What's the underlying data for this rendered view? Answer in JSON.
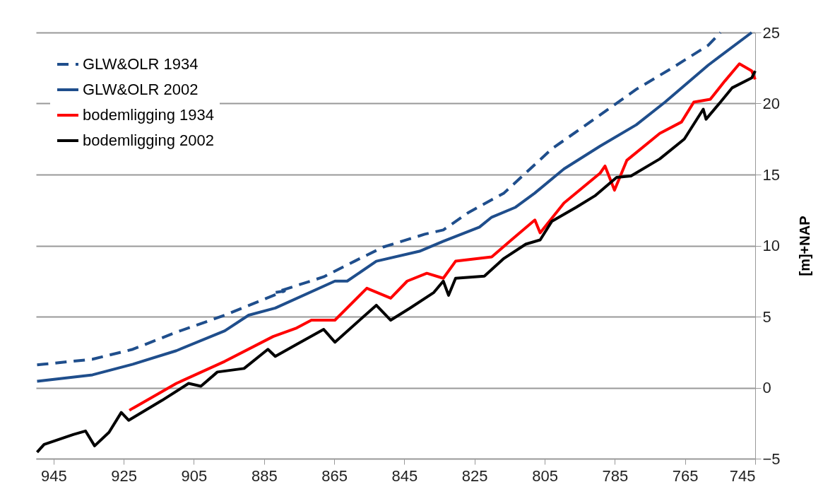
{
  "chart_data": {
    "type": "line",
    "ylabel": "[m]+NAP",
    "xlim": [
      950,
      745
    ],
    "xticks": [
      945,
      925,
      905,
      885,
      865,
      845,
      825,
      805,
      785,
      765,
      745
    ],
    "ylim": [
      -5,
      25
    ],
    "yticks": [
      -5,
      0,
      5,
      10,
      15,
      20,
      25
    ],
    "grid": "y",
    "legend": "top left",
    "marker": "none",
    "series": [
      {
        "name": "GLW&OLR 1934",
        "color": "#1f4e8c",
        "line_style": "dashed",
        "x": [
          949.7,
          947.7,
          933.9,
          922.4,
          910.0,
          896.2,
          879.2,
          881.8,
          868.0,
          859.2,
          851.0,
          839.2,
          833.9,
          826.9,
          816.6,
          803.0,
          789.2,
          778.9,
          768.7,
          758.4,
          754.9
        ],
        "values": [
          1.6,
          1.65,
          2.0,
          2.7,
          3.9,
          5.1,
          6.8,
          6.7,
          7.8,
          8.9,
          9.9,
          10.8,
          11.1,
          12.3,
          13.7,
          16.8,
          19.2,
          21.0,
          22.5,
          24.1,
          25.0
        ]
      },
      {
        "name": "GLW&OLR 2002",
        "color": "#1f4e8c",
        "line_style": "solid",
        "x": [
          949.7,
          933.9,
          922.4,
          910.0,
          896.2,
          889.4,
          881.8,
          864.8,
          861.3,
          853.0,
          840.7,
          833.9,
          823.6,
          820.1,
          813.3,
          807.8,
          799.5,
          789.2,
          778.9,
          770.7,
          758.4,
          746.0
        ],
        "values": [
          0.45,
          0.9,
          1.65,
          2.6,
          4.0,
          5.1,
          5.6,
          7.5,
          7.5,
          8.9,
          9.6,
          10.3,
          11.3,
          12.0,
          12.7,
          13.7,
          15.4,
          17.0,
          18.5,
          20.1,
          22.7,
          25.0
        ]
      },
      {
        "name": "bodemligging 1934",
        "color": "#ff0000",
        "line_style": "solid",
        "x": [
          923.4,
          922.4,
          910.0,
          896.2,
          882.4,
          875.7,
          871.5,
          864.8,
          855.7,
          848.9,
          844.2,
          838.6,
          833.9,
          830.4,
          820.1,
          814.5,
          807.8,
          806.3,
          799.5,
          789.2,
          787.8,
          785.1,
          781.6,
          772.2,
          766.0,
          762.5,
          757.8,
          753.6,
          749.5,
          746.0,
          745.0
        ],
        "values": [
          -1.6,
          -1.45,
          0.3,
          1.85,
          3.6,
          4.2,
          4.75,
          4.75,
          7.0,
          6.3,
          7.5,
          8.05,
          7.7,
          8.9,
          9.2,
          10.4,
          11.8,
          10.9,
          13.0,
          15.1,
          15.6,
          13.9,
          16.0,
          17.9,
          18.7,
          20.1,
          20.3,
          21.6,
          22.8,
          22.3,
          21.7
        ]
      },
      {
        "name": "bodemligging 2002",
        "color": "#000000",
        "line_style": "solid",
        "x": [
          949.7,
          947.7,
          939.4,
          935.9,
          933.3,
          929.2,
          925.7,
          923.6,
          914.1,
          906.5,
          903.0,
          898.3,
          890.7,
          883.9,
          881.8,
          875.7,
          868.0,
          864.8,
          853.0,
          848.9,
          843.4,
          836.6,
          833.9,
          832.4,
          830.4,
          822.2,
          816.6,
          810.4,
          806.3,
          803.0,
          796.0,
          790.7,
          784.5,
          780.4,
          772.2,
          765.2,
          759.8,
          759.0,
          754.9,
          751.6,
          746.0,
          745.0
        ],
        "values": [
          -4.55,
          -4.0,
          -3.3,
          -3.05,
          -4.1,
          -3.15,
          -1.75,
          -2.3,
          -0.9,
          0.3,
          0.1,
          1.1,
          1.35,
          2.7,
          2.2,
          3.05,
          4.1,
          3.2,
          5.8,
          4.75,
          5.6,
          6.7,
          7.5,
          6.5,
          7.7,
          7.85,
          9.1,
          10.1,
          10.4,
          11.7,
          12.7,
          13.5,
          14.8,
          14.9,
          16.1,
          17.5,
          19.6,
          18.9,
          20.1,
          21.1,
          21.8,
          22.3
        ]
      }
    ]
  }
}
